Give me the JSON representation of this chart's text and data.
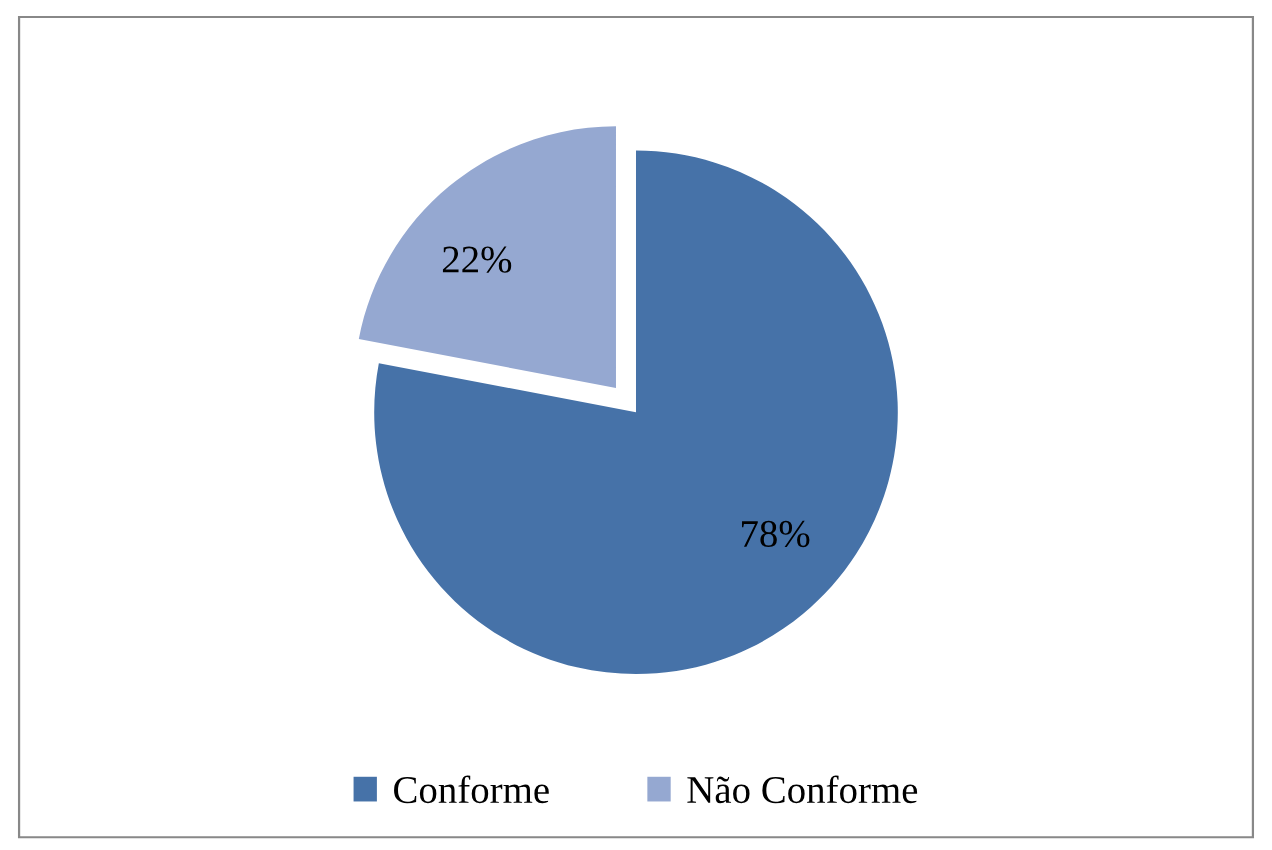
{
  "chart_data": {
    "type": "pie",
    "categories": [
      "Conforme",
      "Não Conforme"
    ],
    "values": [
      78,
      22
    ],
    "colors": [
      "#4672a8",
      "#95a8d1"
    ],
    "value_labels": [
      "78%",
      "22%"
    ],
    "legend": "bottom"
  }
}
